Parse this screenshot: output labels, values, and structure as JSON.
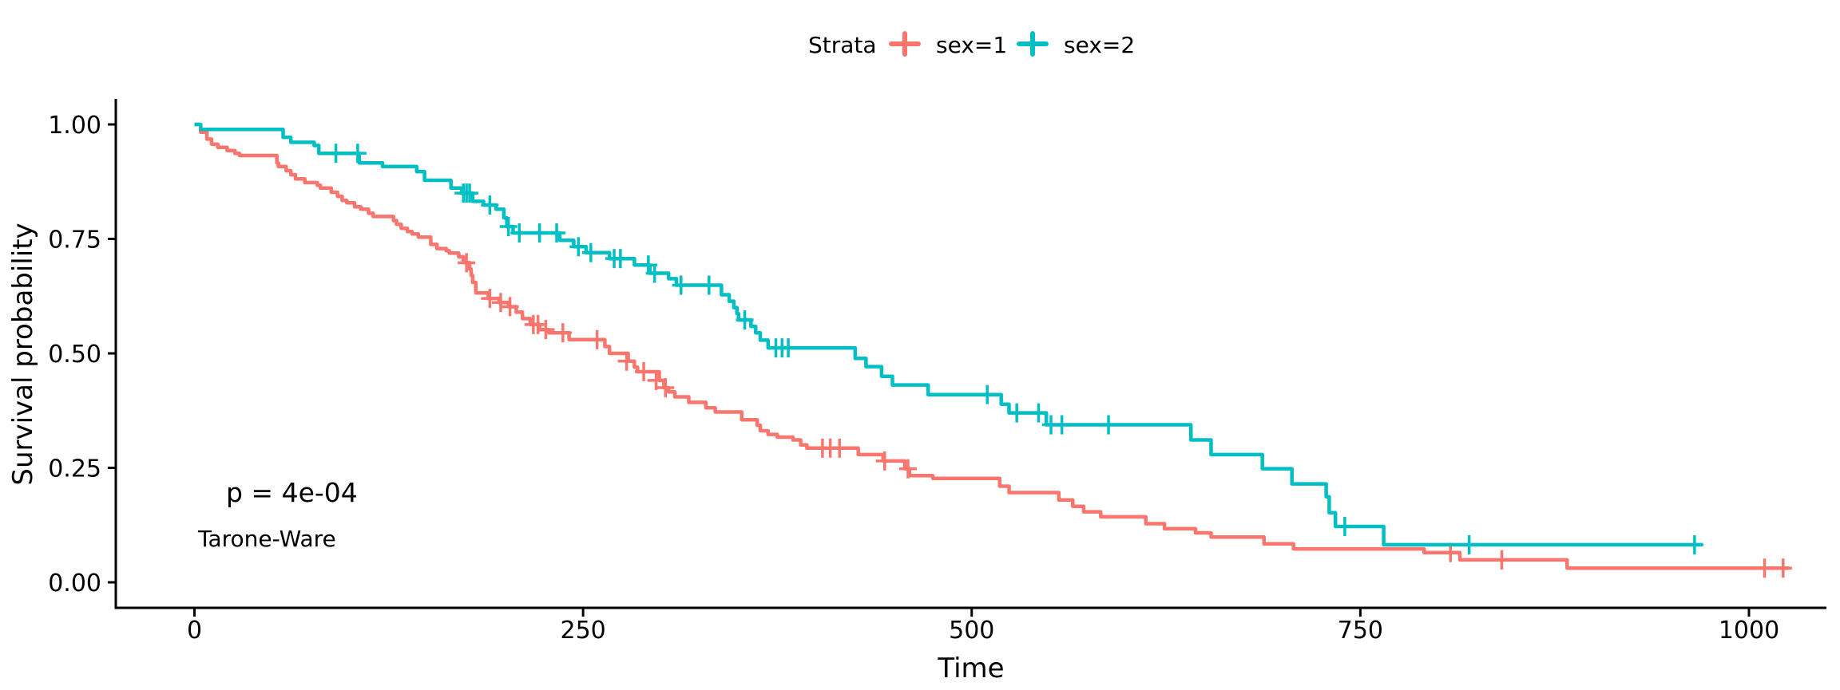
{
  "figure": {
    "legend": {
      "title": "Strata",
      "items": [
        {
          "label": "sex=1",
          "color": "#F8766D"
        },
        {
          "label": "sex=2",
          "color": "#00BFC4"
        }
      ]
    },
    "annotations": {
      "p_value": "p = 4e-04",
      "method": "Tarone-Ware"
    }
  },
  "chart_data": {
    "type": "line",
    "chart_kind": "kaplan-meier-step",
    "title": "",
    "xlabel": "Time",
    "ylabel": "Survival probability",
    "xlim": [
      0,
      1050
    ],
    "ylim": [
      0,
      1
    ],
    "grid": false,
    "legend_position": "top",
    "x_ticks": [
      {
        "value": 0,
        "label": "0"
      },
      {
        "value": 250,
        "label": "250"
      },
      {
        "value": 500,
        "label": "500"
      },
      {
        "value": 750,
        "label": "750"
      },
      {
        "value": 1000,
        "label": "1000"
      }
    ],
    "y_ticks": [
      {
        "value": 0.0,
        "label": "0.00"
      },
      {
        "value": 0.25,
        "label": "0.25"
      },
      {
        "value": 0.5,
        "label": "0.50"
      },
      {
        "value": 0.75,
        "label": "0.75"
      },
      {
        "value": 1.0,
        "label": "1.00"
      }
    ],
    "series": [
      {
        "name": "sex=1",
        "color": "#F8766D",
        "points": [
          [
            0,
            1.0
          ],
          [
            4,
            0.983
          ],
          [
            8,
            0.968
          ],
          [
            11,
            0.957
          ],
          [
            15,
            0.95
          ],
          [
            21,
            0.943
          ],
          [
            26,
            0.937
          ],
          [
            29,
            0.932
          ],
          [
            53,
            0.916
          ],
          [
            54,
            0.908
          ],
          [
            59,
            0.899
          ],
          [
            62,
            0.89
          ],
          [
            65,
            0.881
          ],
          [
            71,
            0.873
          ],
          [
            79,
            0.867
          ],
          [
            81,
            0.861
          ],
          [
            88,
            0.852
          ],
          [
            92,
            0.843
          ],
          [
            95,
            0.834
          ],
          [
            98,
            0.829
          ],
          [
            103,
            0.82
          ],
          [
            107,
            0.815
          ],
          [
            112,
            0.806
          ],
          [
            115,
            0.799
          ],
          [
            128,
            0.79
          ],
          [
            130,
            0.782
          ],
          [
            133,
            0.773
          ],
          [
            137,
            0.766
          ],
          [
            140,
            0.761
          ],
          [
            144,
            0.754
          ],
          [
            152,
            0.738
          ],
          [
            156,
            0.729
          ],
          [
            162,
            0.724
          ],
          [
            164,
            0.719
          ],
          [
            170,
            0.711
          ],
          [
            173,
            0.698
          ],
          [
            177,
            0.684
          ],
          [
            178,
            0.67
          ],
          [
            179,
            0.655
          ],
          [
            181,
            0.632
          ],
          [
            189,
            0.62
          ],
          [
            196,
            0.611
          ],
          [
            202,
            0.602
          ],
          [
            207,
            0.59
          ],
          [
            211,
            0.576
          ],
          [
            216,
            0.563
          ],
          [
            222,
            0.552
          ],
          [
            228,
            0.545
          ],
          [
            241,
            0.53
          ],
          [
            264,
            0.515
          ],
          [
            267,
            0.5
          ],
          [
            279,
            0.483
          ],
          [
            283,
            0.47
          ],
          [
            285,
            0.46
          ],
          [
            299,
            0.441
          ],
          [
            302,
            0.425
          ],
          [
            305,
            0.416
          ],
          [
            309,
            0.405
          ],
          [
            318,
            0.393
          ],
          [
            329,
            0.381
          ],
          [
            335,
            0.372
          ],
          [
            352,
            0.355
          ],
          [
            362,
            0.343
          ],
          [
            364,
            0.331
          ],
          [
            369,
            0.323
          ],
          [
            375,
            0.317
          ],
          [
            385,
            0.311
          ],
          [
            390,
            0.3
          ],
          [
            394,
            0.293
          ],
          [
            427,
            0.279
          ],
          [
            443,
            0.265
          ],
          [
            457,
            0.248
          ],
          [
            460,
            0.233
          ],
          [
            475,
            0.227
          ],
          [
            518,
            0.21
          ],
          [
            524,
            0.196
          ],
          [
            556,
            0.18
          ],
          [
            565,
            0.166
          ],
          [
            572,
            0.154
          ],
          [
            583,
            0.143
          ],
          [
            612,
            0.128
          ],
          [
            624,
            0.117
          ],
          [
            644,
            0.108
          ],
          [
            654,
            0.099
          ],
          [
            688,
            0.084
          ],
          [
            707,
            0.073
          ],
          [
            791,
            0.065
          ],
          [
            814,
            0.049
          ],
          [
            883,
            0.031
          ],
          [
            1026,
            0.031
          ]
        ],
        "censored": [
          [
            175,
            0.698
          ],
          [
            190,
            0.62
          ],
          [
            197,
            0.611
          ],
          [
            203,
            0.602
          ],
          [
            218,
            0.563
          ],
          [
            221,
            0.563
          ],
          [
            226,
            0.552
          ],
          [
            237,
            0.545
          ],
          [
            259,
            0.53
          ],
          [
            278,
            0.483
          ],
          [
            289,
            0.46
          ],
          [
            297,
            0.441
          ],
          [
            303,
            0.425
          ],
          [
            404,
            0.293
          ],
          [
            409,
            0.293
          ],
          [
            415,
            0.293
          ],
          [
            444,
            0.265
          ],
          [
            459,
            0.248
          ],
          [
            808,
            0.065
          ],
          [
            841,
            0.049
          ],
          [
            1010,
            0.031
          ],
          [
            1022,
            0.031
          ]
        ]
      },
      {
        "name": "sex=2",
        "color": "#00BFC4",
        "points": [
          [
            0,
            1.0
          ],
          [
            4,
            0.989
          ],
          [
            57,
            0.972
          ],
          [
            62,
            0.961
          ],
          [
            77,
            0.954
          ],
          [
            80,
            0.937
          ],
          [
            106,
            0.916
          ],
          [
            121,
            0.908
          ],
          [
            143,
            0.897
          ],
          [
            148,
            0.878
          ],
          [
            165,
            0.861
          ],
          [
            172,
            0.85
          ],
          [
            179,
            0.832
          ],
          [
            186,
            0.824
          ],
          [
            194,
            0.815
          ],
          [
            199,
            0.796
          ],
          [
            201,
            0.777
          ],
          [
            205,
            0.763
          ],
          [
            235,
            0.747
          ],
          [
            244,
            0.733
          ],
          [
            252,
            0.72
          ],
          [
            267,
            0.707
          ],
          [
            283,
            0.693
          ],
          [
            293,
            0.675
          ],
          [
            305,
            0.663
          ],
          [
            310,
            0.649
          ],
          [
            339,
            0.628
          ],
          [
            344,
            0.614
          ],
          [
            347,
            0.6
          ],
          [
            349,
            0.587
          ],
          [
            350,
            0.573
          ],
          [
            358,
            0.559
          ],
          [
            361,
            0.545
          ],
          [
            364,
            0.529
          ],
          [
            369,
            0.512
          ],
          [
            425,
            0.489
          ],
          [
            432,
            0.471
          ],
          [
            442,
            0.45
          ],
          [
            449,
            0.431
          ],
          [
            472,
            0.41
          ],
          [
            519,
            0.389
          ],
          [
            524,
            0.37
          ],
          [
            548,
            0.344
          ],
          [
            641,
            0.311
          ],
          [
            654,
            0.279
          ],
          [
            687,
            0.248
          ],
          [
            706,
            0.215
          ],
          [
            728,
            0.187
          ],
          [
            730,
            0.152
          ],
          [
            734,
            0.122
          ],
          [
            765,
            0.082
          ],
          [
            970,
            0.082
          ]
        ],
        "censored": [
          [
            91,
            0.937
          ],
          [
            105,
            0.937
          ],
          [
            173,
            0.85
          ],
          [
            175,
            0.85
          ],
          [
            177,
            0.85
          ],
          [
            190,
            0.824
          ],
          [
            202,
            0.777
          ],
          [
            209,
            0.763
          ],
          [
            222,
            0.763
          ],
          [
            233,
            0.763
          ],
          [
            247,
            0.733
          ],
          [
            255,
            0.72
          ],
          [
            270,
            0.707
          ],
          [
            274,
            0.707
          ],
          [
            292,
            0.693
          ],
          [
            296,
            0.675
          ],
          [
            313,
            0.649
          ],
          [
            331,
            0.649
          ],
          [
            354,
            0.573
          ],
          [
            374,
            0.512
          ],
          [
            378,
            0.512
          ],
          [
            382,
            0.512
          ],
          [
            510,
            0.41
          ],
          [
            529,
            0.37
          ],
          [
            543,
            0.37
          ],
          [
            551,
            0.344
          ],
          [
            558,
            0.344
          ],
          [
            588,
            0.344
          ],
          [
            740,
            0.122
          ],
          [
            820,
            0.082
          ],
          [
            965,
            0.082
          ]
        ]
      }
    ]
  }
}
